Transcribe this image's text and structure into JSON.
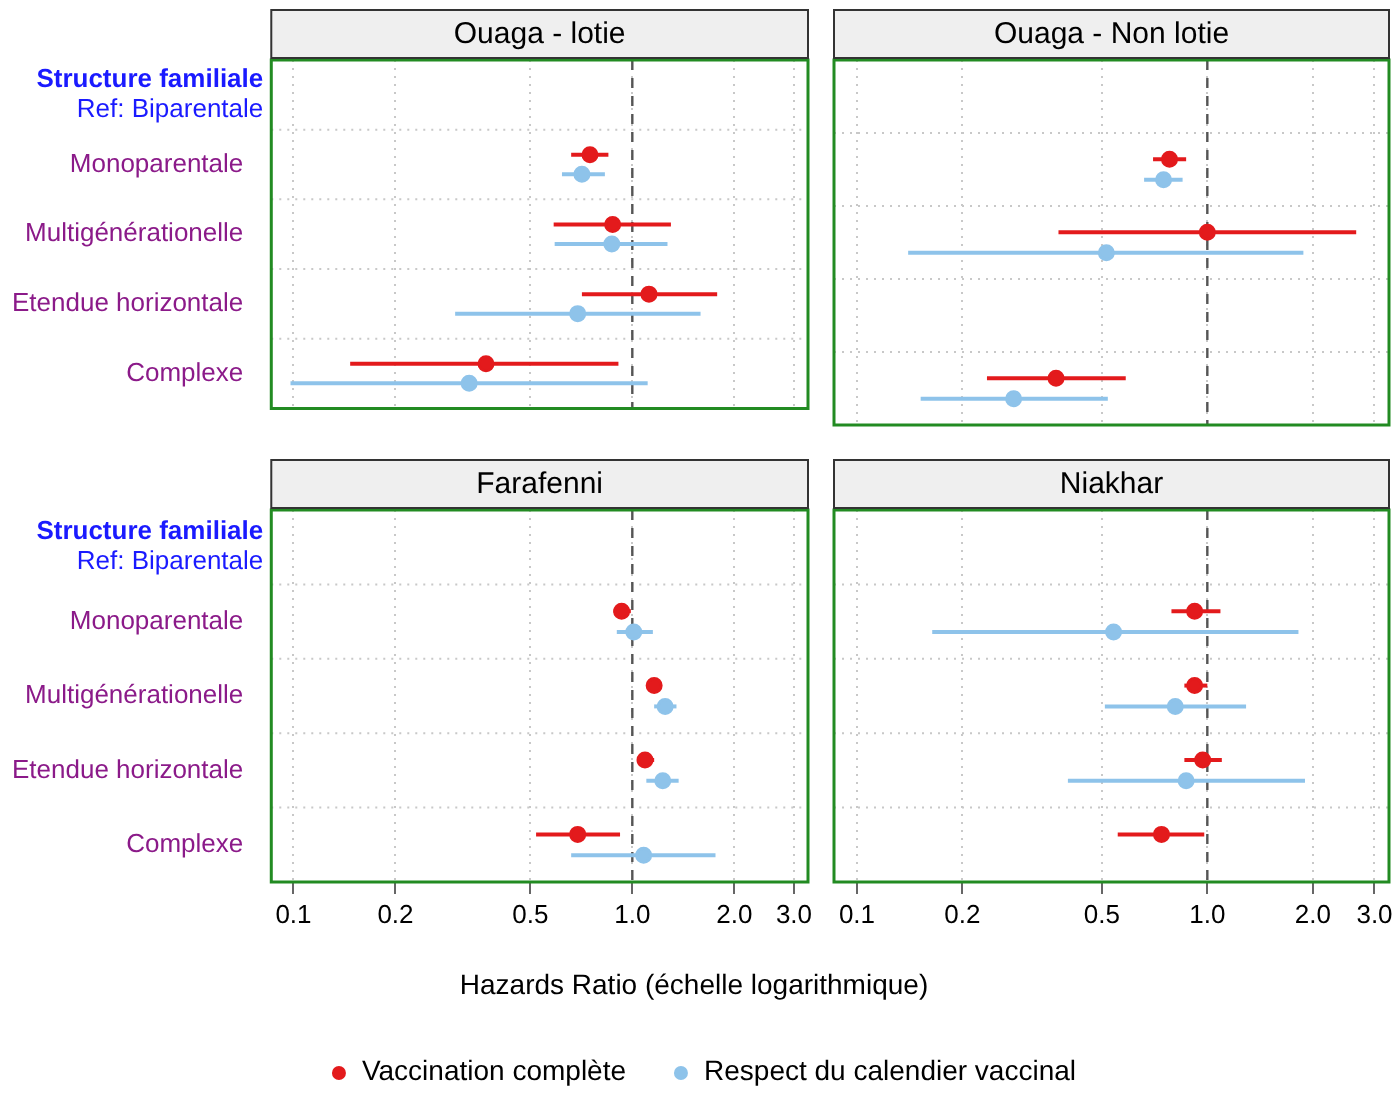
{
  "chart_data": [
    {
      "type": "scatter",
      "orientation": "horizontal",
      "title": "Ouaga - lotie",
      "categories": [
        null,
        "Monoparentale",
        "Multigénérationelle",
        "Etendue horizontale",
        "Complexe"
      ],
      "annotations": [
        "Structure familiale",
        "Ref: Biparentale"
      ],
      "xlim": [
        0.086,
        3.3
      ],
      "xticks": [
        0.1,
        0.2,
        0.5,
        1,
        2,
        3
      ],
      "log": "x",
      "grid": true,
      "tick_labels": "y",
      "marker": "circle",
      "ref_lines": [
        {
          "axis": "x",
          "value": 1,
          "line_style": "dashed",
          "color": "#555555"
        }
      ],
      "series": [
        {
          "color": "#e31a1c",
          "values": [
            null,
            0.75,
            0.875,
            1.12,
            0.37
          ],
          "errors": [
            null,
            [
              0.66,
              0.85
            ],
            [
              0.586,
              1.3
            ],
            [
              0.71,
              1.78
            ],
            [
              0.147,
              0.91
            ]
          ]
        },
        {
          "color": "#8ec3ea",
          "values": [
            null,
            0.71,
            0.87,
            0.69,
            0.33
          ],
          "errors": [
            null,
            [
              0.62,
              0.83
            ],
            [
              0.59,
              1.27
            ],
            [
              0.3,
              1.59
            ],
            [
              0.098,
              1.11
            ]
          ]
        }
      ]
    },
    {
      "type": "scatter",
      "orientation": "horizontal",
      "title": "Ouaga - Non lotie",
      "categories": [
        null,
        null,
        null,
        null,
        null
      ],
      "xlim": [
        0.086,
        3.3
      ],
      "xticks": [
        0.1,
        0.2,
        0.5,
        1,
        2,
        3
      ],
      "log": "x",
      "grid": true,
      "tick_labels": false,
      "marker": "circle",
      "ref_lines": [
        {
          "axis": "x",
          "value": 1,
          "line_style": "dashed",
          "color": "#555555"
        }
      ],
      "series": [
        {
          "color": "#e31a1c",
          "values": [
            null,
            0.78,
            1.0,
            null,
            0.37
          ],
          "errors": [
            null,
            [
              0.7,
              0.87
            ],
            [
              0.376,
              2.66
            ],
            null,
            [
              0.235,
              0.585
            ]
          ]
        },
        {
          "color": "#8ec3ea",
          "values": [
            null,
            0.75,
            0.515,
            null,
            0.28
          ],
          "errors": [
            null,
            [
              0.66,
              0.85
            ],
            [
              0.14,
              1.88
            ],
            null,
            [
              0.152,
              0.52
            ]
          ]
        }
      ]
    },
    {
      "type": "scatter",
      "orientation": "horizontal",
      "title": "Farafenni",
      "xlabel": "Hazards Ratio (échelle logarithmique)",
      "legend": "bottom",
      "categories": [
        null,
        "Monoparentale",
        "Multigénérationelle",
        "Etendue horizontale",
        "Complexe"
      ],
      "annotations": [
        "Structure familiale",
        "Ref: Biparentale"
      ],
      "xlim": [
        0.086,
        3.3
      ],
      "xticks": [
        0.1,
        0.2,
        0.5,
        {
          "value": 1,
          "label": "1.0"
        },
        {
          "value": 2,
          "label": "2.0"
        },
        {
          "value": 3,
          "label": "3.0"
        }
      ],
      "log": "x",
      "grid": true,
      "marker": "circle",
      "ref_lines": [
        {
          "axis": "x",
          "value": 1,
          "line_style": "dashed",
          "color": "#555555"
        }
      ],
      "series": [
        {
          "name": "Vaccination complète",
          "color": "#e31a1c",
          "values": [
            null,
            0.93,
            1.16,
            1.09,
            0.69
          ],
          "errors": [
            null,
            [
              0.88,
              0.99
            ],
            [
              1.12,
              1.19
            ],
            [
              1.04,
              1.16
            ],
            [
              0.52,
              0.92
            ]
          ]
        },
        {
          "name": "Respect du calendier vaccinal",
          "color": "#8ec3ea",
          "values": [
            null,
            1.01,
            1.25,
            1.23,
            1.08
          ],
          "errors": [
            null,
            [
              0.9,
              1.15
            ],
            [
              1.16,
              1.35
            ],
            [
              1.1,
              1.37
            ],
            [
              0.66,
              1.76
            ]
          ]
        }
      ]
    },
    {
      "type": "scatter",
      "orientation": "horizontal",
      "title": "Niakhar",
      "categories": [
        null,
        null,
        null,
        null,
        null
      ],
      "xlim": [
        0.086,
        3.3
      ],
      "xticks": [
        0.1,
        0.2,
        0.5,
        {
          "value": 1,
          "label": "1.0"
        },
        {
          "value": 2,
          "label": "2.0"
        },
        {
          "value": 3,
          "label": "3.0"
        }
      ],
      "log": "x",
      "grid": true,
      "tick_labels": "x",
      "marker": "circle",
      "ref_lines": [
        {
          "axis": "x",
          "value": 1,
          "line_style": "dashed",
          "color": "#555555"
        }
      ],
      "series": [
        {
          "color": "#e31a1c",
          "values": [
            null,
            0.92,
            0.92,
            0.97,
            0.74
          ],
          "errors": [
            null,
            [
              0.79,
              1.09
            ],
            [
              0.86,
              1.0
            ],
            [
              0.86,
              1.1
            ],
            [
              0.555,
              0.98
            ]
          ]
        },
        {
          "color": "#8ec3ea",
          "values": [
            null,
            0.54,
            0.81,
            0.87,
            null
          ],
          "errors": [
            null,
            [
              0.164,
              1.82
            ],
            [
              0.51,
              1.29
            ],
            [
              0.4,
              1.9
            ],
            null
          ]
        }
      ]
    }
  ]
}
